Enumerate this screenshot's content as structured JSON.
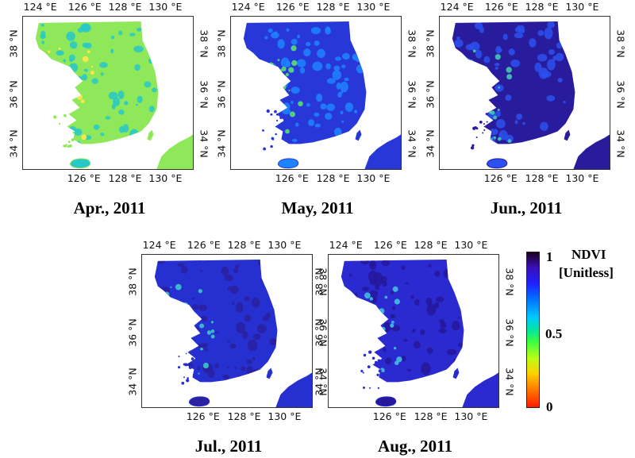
{
  "axis_labels": {
    "lon_top": [
      "124 °E",
      "126 °E",
      "128 °E",
      "130 °E"
    ],
    "lon_bottom": [
      "126 °E",
      "128 °E",
      "130 °E"
    ],
    "lat_left": [
      "38 °N",
      "36 °N",
      "34 °N"
    ],
    "lat_right": [
      "38 °N",
      "36 °N",
      "34 °N"
    ]
  },
  "panels": [
    {
      "caption": "Apr., 2011",
      "ndvi_typical": 0.4,
      "land_color": "#8ee85a",
      "patch_color": "#26c8c8",
      "accent_color": "#ffe84a"
    },
    {
      "caption": "May, 2011",
      "ndvi_typical": 0.8,
      "land_color": "#2838d8",
      "patch_color": "#1c84ff",
      "accent_color": "#58e070"
    },
    {
      "caption": "Jun., 2011",
      "ndvi_typical": 0.85,
      "land_color": "#281c9c",
      "patch_color": "#2c50f0",
      "accent_color": "#44c8b4"
    },
    {
      "caption": "Jul., 2011",
      "ndvi_typical": 0.8,
      "land_color": "#2630d0",
      "patch_color": "#2a20a0",
      "accent_color": "#3cc8c8"
    },
    {
      "caption": "Aug., 2011",
      "ndvi_typical": 0.8,
      "land_color": "#2a2ad0",
      "patch_color": "#26189a",
      "accent_color": "#40c0e0"
    }
  ],
  "colorbar": {
    "title_line1": "NDVI",
    "title_line2": "[Unitless]",
    "ticks": [
      "1",
      "0.5",
      "0"
    ],
    "range": [
      0,
      1
    ]
  }
}
